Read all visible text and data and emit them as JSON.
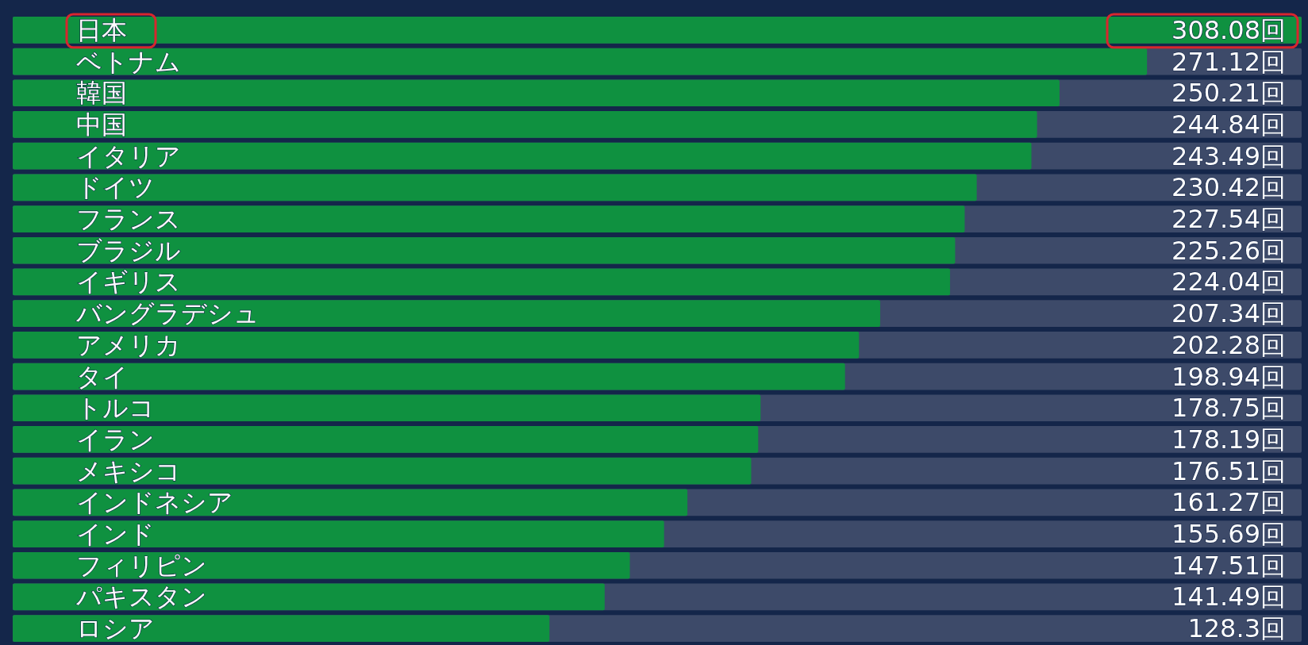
{
  "chart_data": {
    "type": "bar",
    "orientation": "horizontal",
    "relative": false,
    "categories": [
      "日本",
      "ベトナム",
      "韓国",
      "中国",
      "イタリア",
      "ドイツ",
      "フランス",
      "ブラジル",
      "イギリス",
      "バングラデシュ",
      "アメリカ",
      "タイ",
      "トルコ",
      "イラン",
      "メキシコ",
      "インドネシア",
      "インド",
      "フィリピン",
      "パキスタン",
      "ロシア"
    ],
    "values": [
      308.08,
      271.12,
      250.21,
      244.84,
      243.49,
      230.42,
      227.54,
      225.26,
      224.04,
      207.34,
      202.28,
      198.94,
      178.75,
      178.19,
      176.51,
      161.27,
      155.69,
      147.51,
      141.49,
      128.3
    ],
    "value_labels": [
      "308.08回",
      "271.12回",
      "250.21回",
      "244.84回",
      "243.49回",
      "230.42回",
      "227.54回",
      "225.26回",
      "224.04回",
      "207.34回",
      "202.28回",
      "198.94回",
      "178.75回",
      "178.19回",
      "176.51回",
      "161.27回",
      "155.69回",
      "147.51回",
      "141.49回",
      "128.3回"
    ],
    "color": "#0f9140"
  }
}
